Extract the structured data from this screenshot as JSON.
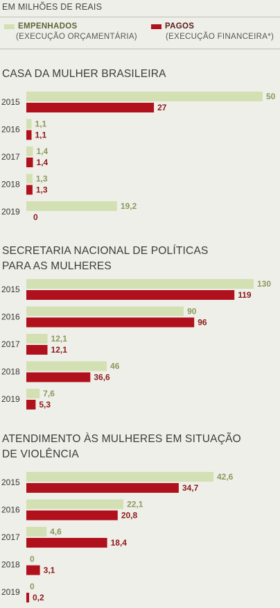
{
  "unit_note": "EM MILHÕES DE REAIS",
  "legend": {
    "empenhados": {
      "name": "EMPENHADOS",
      "sub": "(EXECUÇÃO ORÇAMENTÁRIA)",
      "color": "#d3e0b3"
    },
    "pagos": {
      "name": "PAGOS",
      "sub": "(EXECUÇÃO FINANCEIRA*)",
      "color": "#b0111c"
    }
  },
  "colors": {
    "empenhados_label": "#8a9a5b",
    "pagos_label": "#8c1a1a"
  },
  "chart_data": [
    {
      "type": "bar",
      "title": "CASA DA MULHER BRASILEIRA",
      "categories": [
        "2015",
        "2016",
        "2017",
        "2018",
        "2019"
      ],
      "series": [
        {
          "name": "EMPENHADOS",
          "values": [
            50,
            1.1,
            1.4,
            1.3,
            19.2
          ],
          "labels": [
            "50",
            "1,1",
            "1,4",
            "1,3",
            "19,2"
          ]
        },
        {
          "name": "PAGOS",
          "values": [
            27,
            1.1,
            1.4,
            1.3,
            0
          ],
          "labels": [
            "27",
            "1,1",
            "1,4",
            "1,3",
            "0"
          ]
        }
      ]
    },
    {
      "type": "bar",
      "title": "SECRETARIA NACIONAL DE POLÍTICAS PARA AS MULHERES",
      "title_lines": [
        "SECRETARIA NACIONAL DE POLÍTICAS",
        "PARA AS MULHERES"
      ],
      "categories": [
        "2015",
        "2016",
        "2017",
        "2018",
        "2019"
      ],
      "series": [
        {
          "name": "EMPENHADOS",
          "values": [
            130,
            90,
            12.1,
            46,
            7.6
          ],
          "labels": [
            "130",
            "90",
            "12,1",
            "46",
            "7,6"
          ]
        },
        {
          "name": "PAGOS",
          "values": [
            119,
            96,
            12.1,
            36.6,
            5.3
          ],
          "labels": [
            "119",
            "96",
            "12,1",
            "36,6",
            "5,3"
          ]
        }
      ]
    },
    {
      "type": "bar",
      "title": "ATENDIMENTO ÀS MULHERES EM SITUAÇÃO DE VIOLÊNCIA",
      "title_lines": [
        "ATENDIMENTO ÀS MULHERES EM SITUAÇÃO",
        "DE VIOLÊNCIA"
      ],
      "categories": [
        "2015",
        "2016",
        "2017",
        "2018",
        "2019"
      ],
      "series": [
        {
          "name": "EMPENHADOS",
          "values": [
            42.6,
            22.1,
            4.6,
            0,
            0
          ],
          "labels": [
            "42,6",
            "22,1",
            "4,6",
            "0",
            "0"
          ]
        },
        {
          "name": "PAGOS",
          "values": [
            34.7,
            20.8,
            18.4,
            3.1,
            0.2
          ],
          "labels": [
            "34,7",
            "20,8",
            "18,4",
            "3,1",
            "0,2"
          ]
        }
      ]
    }
  ]
}
